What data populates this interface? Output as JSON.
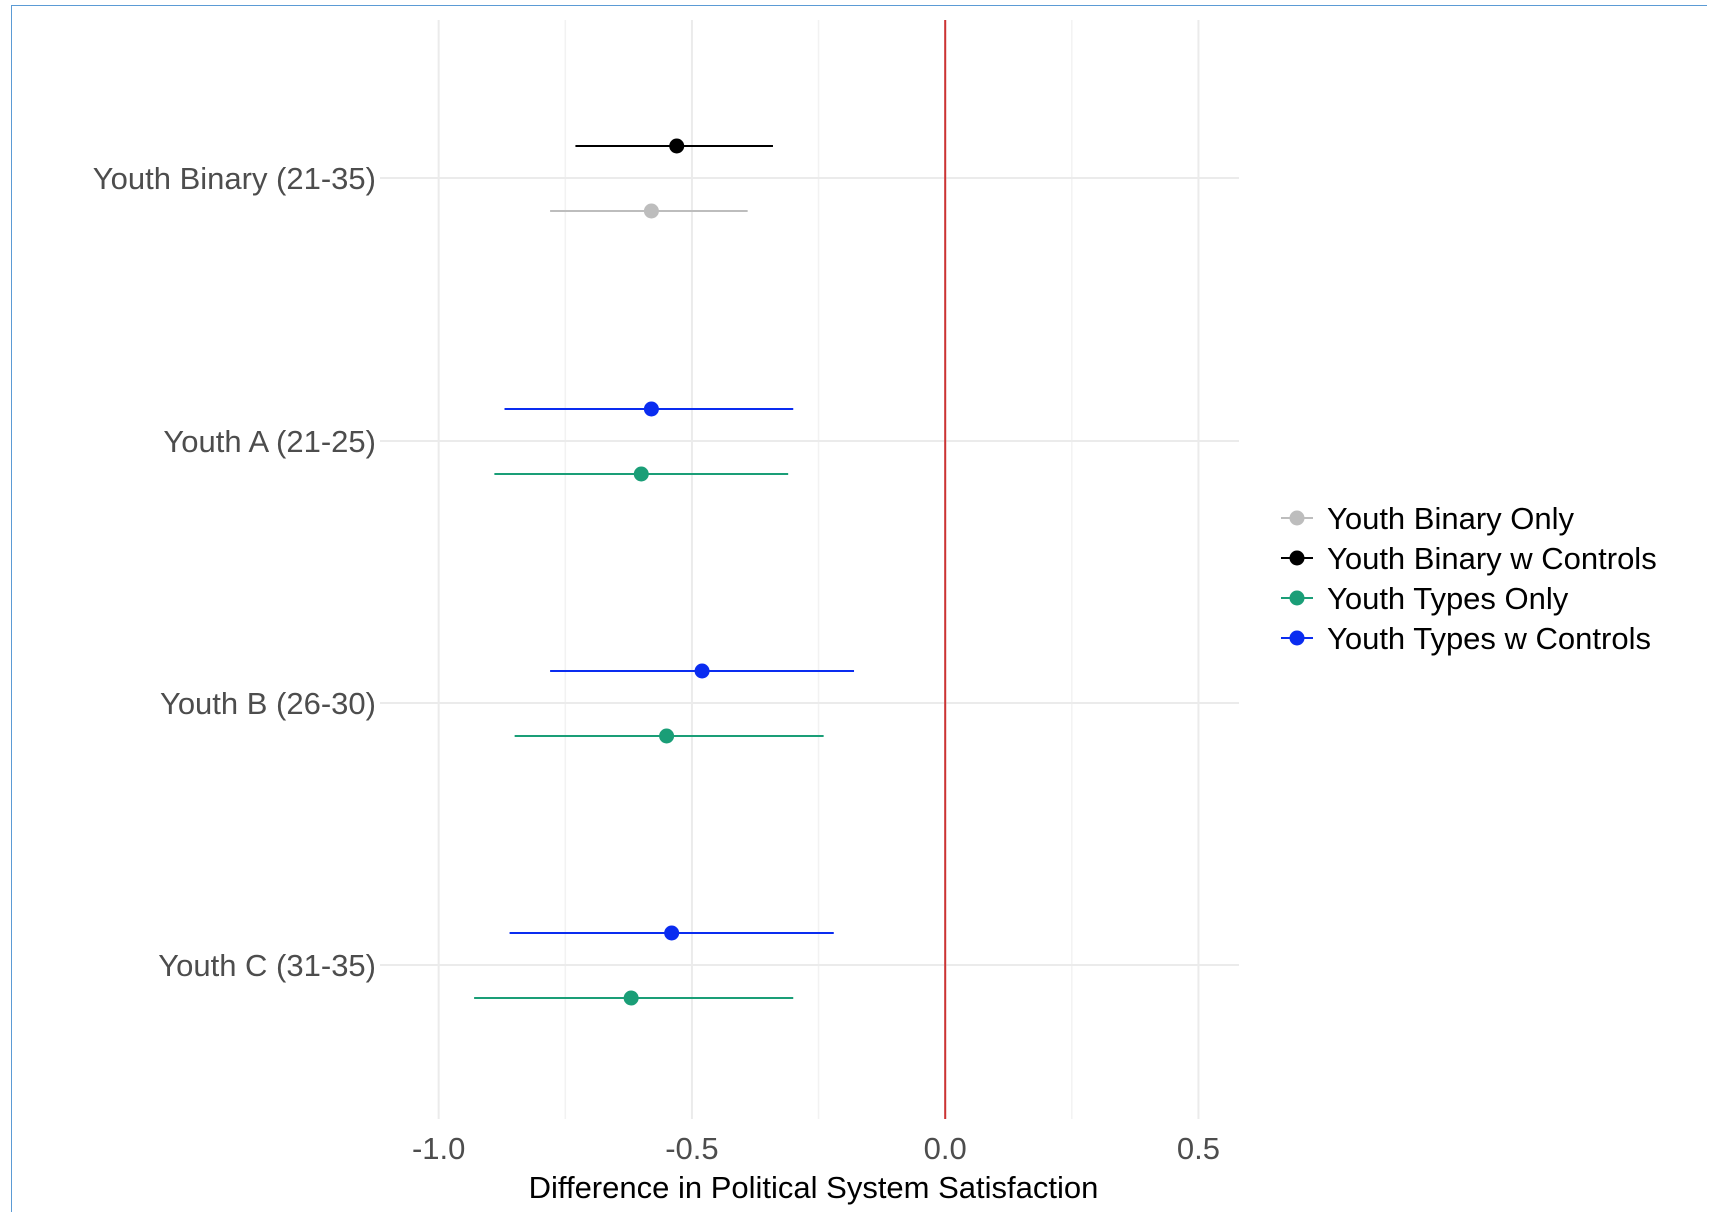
{
  "chart_data": {
    "type": "scatter",
    "subtype": "coefficient-plot",
    "title": "",
    "xlabel": "Difference in Political System Satisfaction",
    "ylabel": "",
    "xlim": [
      -1.1,
      0.58
    ],
    "x_ticks": [
      -1.0,
      -0.5,
      0.0,
      0.5
    ],
    "x_tick_labels": [
      "-1.0",
      "-0.5",
      "0.0",
      "0.5"
    ],
    "reference_line": {
      "x": 0.0,
      "color": "#cc3333"
    },
    "grid": true,
    "legend_position": "right",
    "categories": [
      "Youth Binary (21-35)",
      "Youth A (21-25)",
      "Youth B (26-30)",
      "Youth C (31-35)"
    ],
    "series": [
      {
        "name": "Youth Binary Only",
        "color": "#bdbdbd",
        "points": [
          {
            "category": "Youth Binary (21-35)",
            "estimate": -0.58,
            "lower": -0.78,
            "upper": -0.39
          }
        ]
      },
      {
        "name": "Youth Binary w Controls",
        "color": "#000000",
        "points": [
          {
            "category": "Youth Binary (21-35)",
            "estimate": -0.53,
            "lower": -0.73,
            "upper": -0.34
          }
        ]
      },
      {
        "name": "Youth Types Only",
        "color": "#1a9e77",
        "points": [
          {
            "category": "Youth A (21-25)",
            "estimate": -0.6,
            "lower": -0.89,
            "upper": -0.31
          },
          {
            "category": "Youth B (26-30)",
            "estimate": -0.55,
            "lower": -0.85,
            "upper": -0.24
          },
          {
            "category": "Youth C (31-35)",
            "estimate": -0.62,
            "lower": -0.93,
            "upper": -0.3
          }
        ]
      },
      {
        "name": "Youth Types w Controls",
        "color": "#0a2cf0",
        "points": [
          {
            "category": "Youth A (21-25)",
            "estimate": -0.58,
            "lower": -0.87,
            "upper": -0.3
          },
          {
            "category": "Youth B (26-30)",
            "estimate": -0.48,
            "lower": -0.78,
            "upper": -0.18
          },
          {
            "category": "Youth C (31-35)",
            "estimate": -0.54,
            "lower": -0.86,
            "upper": -0.22
          }
        ]
      }
    ]
  }
}
